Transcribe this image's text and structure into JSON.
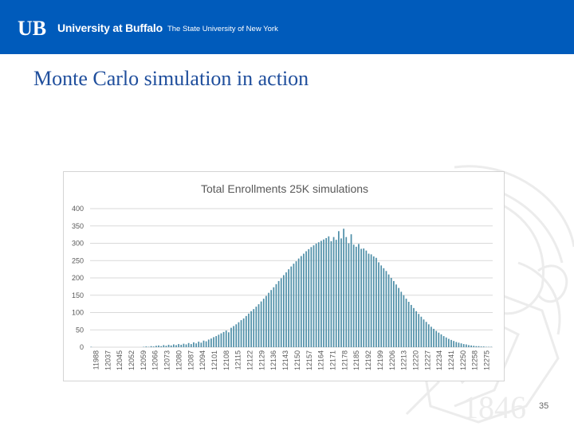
{
  "header": {
    "logo_mark": "UB",
    "university": "University at Buffalo",
    "state": "The State University of New York"
  },
  "slide": {
    "title": "Monte Carlo simulation in action",
    "page_number": "35"
  },
  "background": {
    "seal_year": "1846"
  },
  "colors": {
    "header_blue": "#005bbb",
    "title_blue": "#1f4e9c",
    "bar_color": "#4f8fa8",
    "grid": "#d9d9d9"
  },
  "chart_data": {
    "type": "bar",
    "title": "Total Enrollments 25K simulations",
    "xlabel": "",
    "ylabel": "",
    "ylim": [
      0,
      400
    ],
    "yticks": [
      0,
      50,
      100,
      150,
      200,
      250,
      300,
      350,
      400
    ],
    "grid": true,
    "x_tick_labels": [
      "11988",
      "12037",
      "12045",
      "12052",
      "12059",
      "12066",
      "12073",
      "12080",
      "12087",
      "12094",
      "12101",
      "12108",
      "12115",
      "12122",
      "12129",
      "12136",
      "12143",
      "12150",
      "12157",
      "12164",
      "12171",
      "12178",
      "12185",
      "12192",
      "12199",
      "12206",
      "12213",
      "12220",
      "12227",
      "12234",
      "12241",
      "12250",
      "12258",
      "12275"
    ],
    "values": [
      1,
      0,
      0,
      0,
      0,
      0,
      0,
      0,
      0,
      0,
      0,
      0,
      0,
      0,
      0,
      0,
      0,
      0,
      0,
      0,
      0,
      1,
      2,
      1,
      3,
      2,
      4,
      5,
      3,
      6,
      4,
      7,
      5,
      8,
      6,
      9,
      7,
      10,
      8,
      12,
      9,
      14,
      11,
      16,
      13,
      19,
      17,
      22,
      25,
      29,
      32,
      36,
      40,
      44,
      48,
      43,
      56,
      61,
      66,
      72,
      78,
      83,
      90,
      97,
      104,
      110,
      117,
      124,
      132,
      140,
      148,
      157,
      165,
      173,
      182,
      191,
      199,
      208,
      216,
      225,
      233,
      241,
      248,
      256,
      263,
      270,
      277,
      283,
      289,
      294,
      299,
      303,
      307,
      311,
      315,
      320,
      306,
      318,
      310,
      335,
      314,
      342,
      318,
      300,
      326,
      296,
      290,
      298,
      284,
      285,
      279,
      270,
      268,
      262,
      258,
      245,
      236,
      228,
      220,
      210,
      200,
      191,
      181,
      171,
      160,
      150,
      140,
      131,
      122,
      113,
      104,
      96,
      88,
      80,
      73,
      66,
      59,
      53,
      47,
      42,
      37,
      32,
      28,
      24,
      21,
      18,
      15,
      13,
      11,
      9,
      8,
      6,
      5,
      4,
      3,
      3,
      2,
      2,
      1,
      1,
      1
    ]
  }
}
